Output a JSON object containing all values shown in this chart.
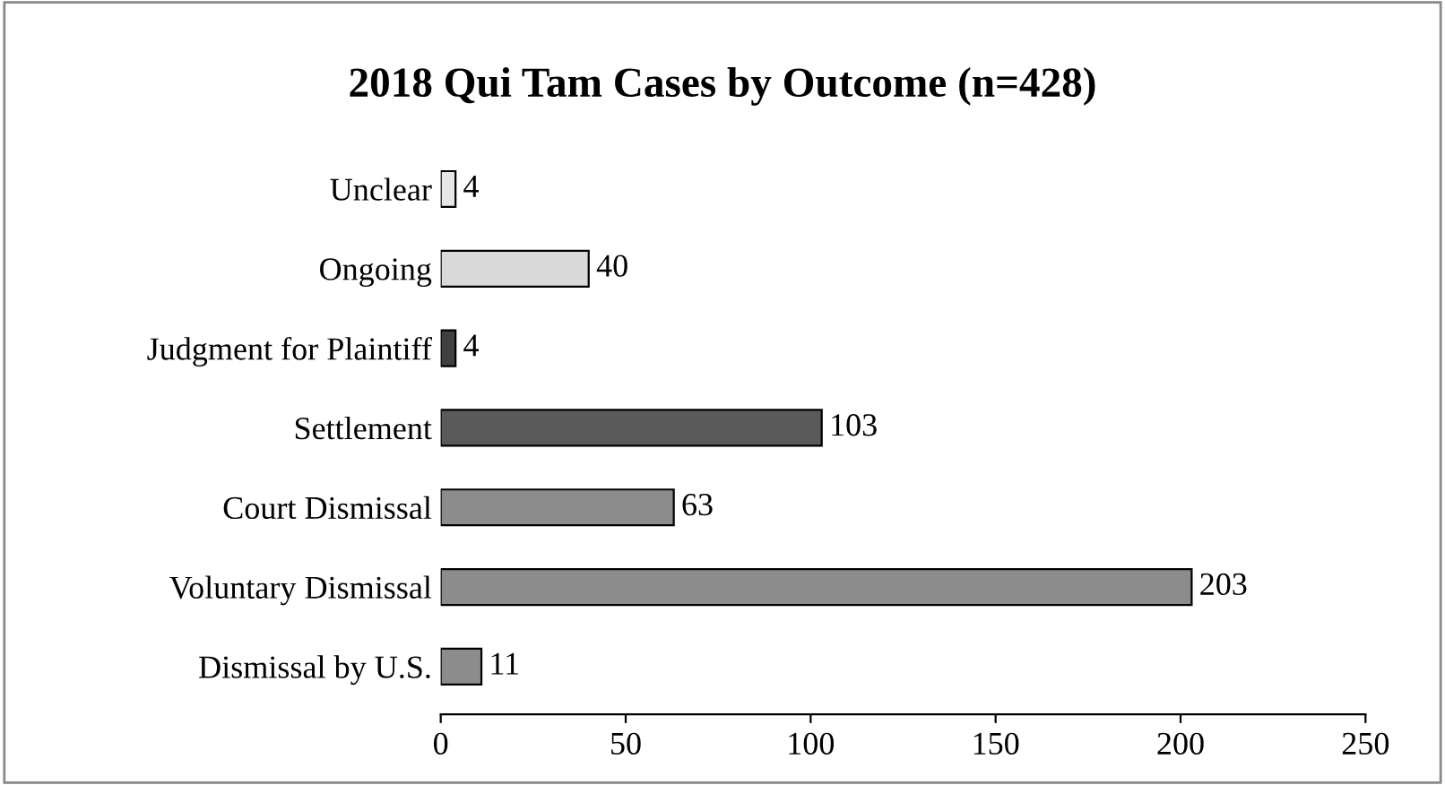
{
  "chart_data": {
    "type": "bar",
    "orientation": "horizontal",
    "title": "2018 Qui Tam Cases by Outcome (n=428)",
    "categories": [
      "Unclear",
      "Ongoing",
      "Judgment for Plaintiff",
      "Settlement",
      "Court Dismissal",
      "Voluntary Dismissal",
      "Dismissal by U.S."
    ],
    "values": [
      4,
      40,
      4,
      103,
      63,
      203,
      11
    ],
    "colors": [
      "#e6e6e6",
      "#d9d9d9",
      "#404040",
      "#5a5a5a",
      "#8c8c8c",
      "#8c8c8c",
      "#8c8c8c"
    ],
    "xlim": [
      0,
      250
    ],
    "xticks": [
      0,
      50,
      100,
      150,
      200,
      250
    ],
    "grid": false,
    "legend": false,
    "data_labels": true
  }
}
